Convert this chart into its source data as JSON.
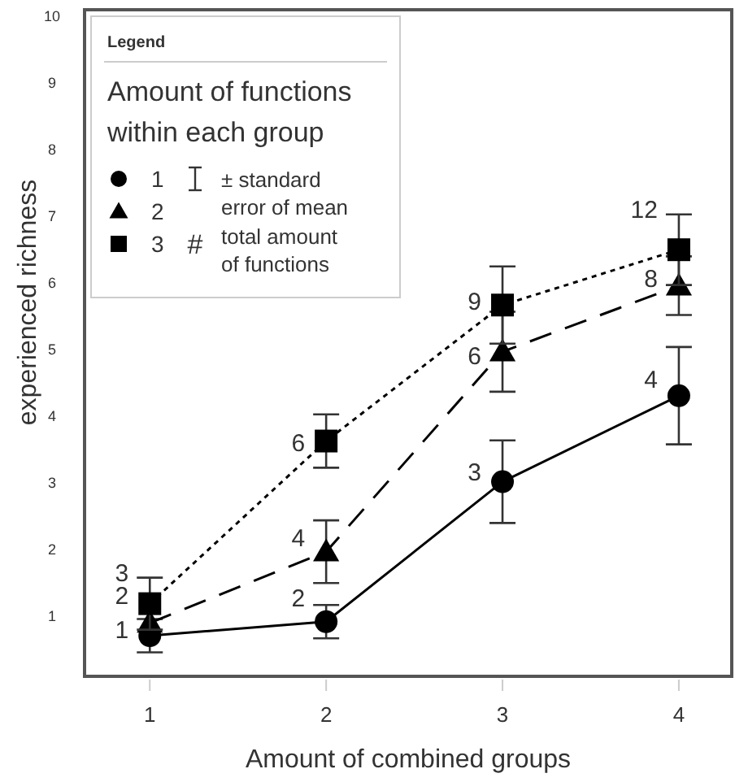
{
  "chart_data": {
    "type": "line",
    "xlabel": "Amount of combined groups",
    "ylabel": "experienced richness",
    "legend_title": "Amount of functions within each group",
    "x": [
      1,
      2,
      3,
      4
    ],
    "xlim": [
      0.63,
      4.3
    ],
    "xticks": [
      1,
      2,
      3,
      4
    ],
    "ylim": [
      0.1,
      10.1
    ],
    "yticks": [
      1,
      2,
      3,
      4,
      5,
      6,
      7,
      8,
      9,
      10
    ],
    "grid": false,
    "legend": "top left",
    "series": [
      {
        "name": "1",
        "color": "#000000",
        "marker": "circle",
        "line_style": "solid",
        "values": [
          0.71,
          0.92,
          3.02,
          4.31
        ],
        "errors": [
          0.25,
          0.25,
          0.62,
          0.73
        ]
      },
      {
        "name": "2",
        "color": "#000000",
        "marker": "triangle",
        "line_style": "dashed",
        "values": [
          0.9,
          1.97,
          4.97,
          5.96
        ],
        "errors": [
          null,
          0.47,
          0.6,
          0.44
        ]
      },
      {
        "name": "3",
        "color": "#000000",
        "marker": "square",
        "line_style": "dotted",
        "values": [
          1.19,
          3.63,
          5.67,
          6.5
        ],
        "errors": [
          0.39,
          0.4,
          0.58,
          0.53
        ]
      }
    ],
    "annotations": [
      "Legend",
      "± standard error of mean",
      "#",
      "total amount of functions",
      {
        "text": "1",
        "x": 1,
        "y": 0.8
      },
      {
        "text": "2",
        "x": 1,
        "y": 1.31
      },
      {
        "text": "3",
        "x": 1,
        "y": 1.65
      },
      {
        "text": "2",
        "x": 2,
        "y": 1.27
      },
      {
        "text": "4",
        "x": 2,
        "y": 2.17
      },
      {
        "text": "6",
        "x": 2,
        "y": 3.6
      },
      {
        "text": "3",
        "x": 3,
        "y": 3.16
      },
      {
        "text": "6",
        "x": 3,
        "y": 4.91
      },
      {
        "text": "9",
        "x": 3,
        "y": 5.72
      },
      {
        "text": "4",
        "x": 4,
        "y": 4.55
      },
      {
        "text": "8",
        "x": 4,
        "y": 6.06
      },
      {
        "text": "12",
        "x": 4,
        "y": 7.1
      }
    ]
  }
}
